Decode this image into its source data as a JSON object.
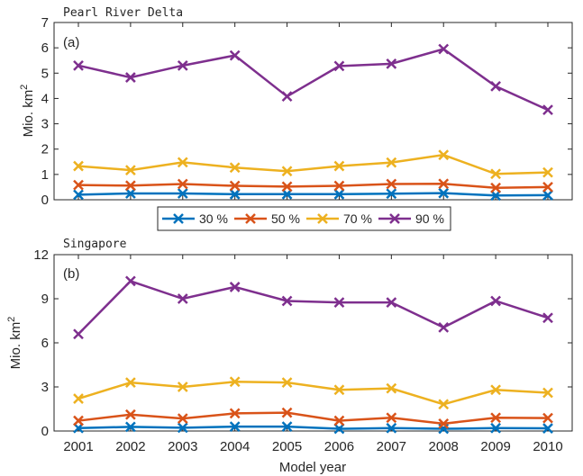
{
  "chart_data": [
    {
      "type": "line",
      "title": "Pearl River Delta",
      "panel_tag": "(a)",
      "ylabel": "Mio. km",
      "ylabel_sup": "2",
      "ylim": [
        0,
        7
      ],
      "yticks": [
        0,
        1,
        2,
        3,
        4,
        5,
        6,
        7
      ],
      "x": [
        2001,
        2002,
        2003,
        2004,
        2005,
        2006,
        2007,
        2008,
        2009,
        2010
      ],
      "grid": false,
      "series": [
        {
          "name": "30 %",
          "color": "#0072BD",
          "values": [
            0.2,
            0.25,
            0.25,
            0.22,
            0.22,
            0.22,
            0.24,
            0.26,
            0.17,
            0.18
          ]
        },
        {
          "name": "50 %",
          "color": "#D95319",
          "values": [
            0.58,
            0.56,
            0.62,
            0.55,
            0.52,
            0.55,
            0.62,
            0.63,
            0.47,
            0.5
          ]
        },
        {
          "name": "70 %",
          "color": "#EDB120",
          "values": [
            1.33,
            1.17,
            1.48,
            1.27,
            1.13,
            1.33,
            1.47,
            1.77,
            1.02,
            1.08
          ]
        },
        {
          "name": "90 %",
          "color": "#7E2F8E",
          "values": [
            5.3,
            4.83,
            5.3,
            5.7,
            4.08,
            5.28,
            5.37,
            5.95,
            4.48,
            3.55
          ]
        }
      ]
    },
    {
      "type": "line",
      "title": "Singapore",
      "panel_tag": "(b)",
      "ylabel": "Mio. km",
      "ylabel_sup": "2",
      "xlabel": "Model year",
      "ylim": [
        0,
        12
      ],
      "yticks": [
        0,
        3,
        6,
        9,
        12
      ],
      "x": [
        2001,
        2002,
        2003,
        2004,
        2005,
        2006,
        2007,
        2008,
        2009,
        2010
      ],
      "grid": false,
      "series": [
        {
          "name": "30 %",
          "color": "#0072BD",
          "values": [
            0.2,
            0.28,
            0.22,
            0.3,
            0.3,
            0.15,
            0.2,
            0.15,
            0.2,
            0.18
          ]
        },
        {
          "name": "50 %",
          "color": "#D95319",
          "values": [
            0.7,
            1.12,
            0.85,
            1.2,
            1.25,
            0.7,
            0.9,
            0.5,
            0.9,
            0.88
          ]
        },
        {
          "name": "70 %",
          "color": "#EDB120",
          "values": [
            2.2,
            3.3,
            3.0,
            3.35,
            3.3,
            2.8,
            2.9,
            1.82,
            2.8,
            2.6
          ]
        },
        {
          "name": "90 %",
          "color": "#7E2F8E",
          "values": [
            6.6,
            10.2,
            9.0,
            9.8,
            8.85,
            8.75,
            8.75,
            7.05,
            8.85,
            7.7
          ]
        }
      ]
    }
  ],
  "legend": {
    "placement": "between-panels",
    "entries": [
      "30 %",
      "50 %",
      "70 %",
      "90 %"
    ]
  }
}
